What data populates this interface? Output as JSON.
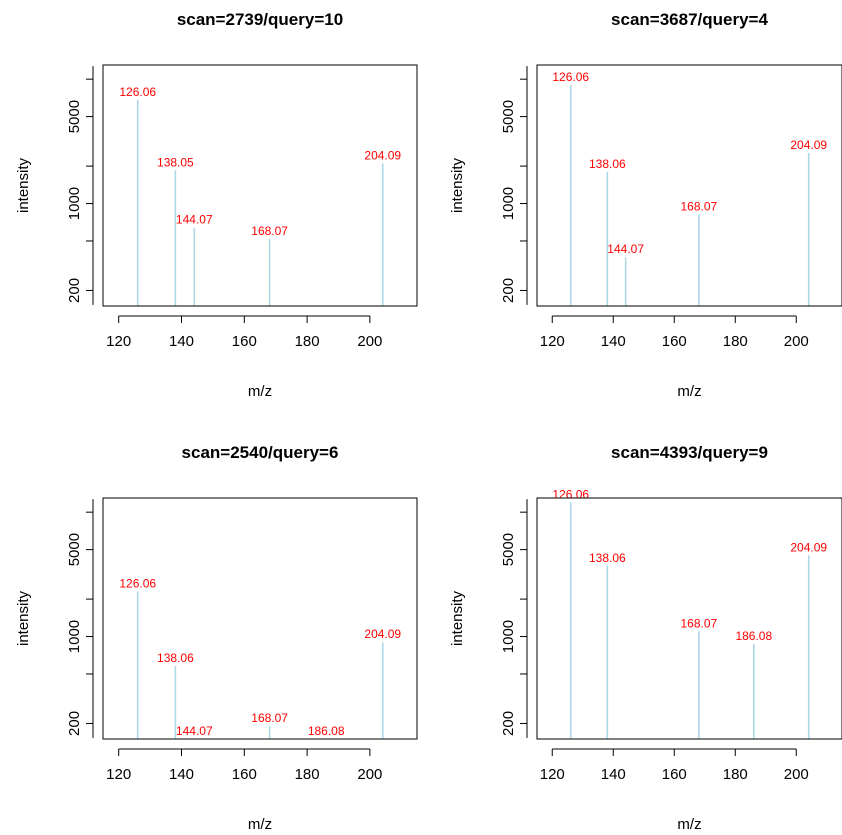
{
  "colors": {
    "peak": "#add8e6",
    "peak_label": "#ff0000",
    "axis": "#000000",
    "background": "#ffffff"
  },
  "chart_data": [
    {
      "type": "bar",
      "title": "scan=2739/query=10",
      "xlabel": "m/z",
      "ylabel": "intensity",
      "y_scale": "log",
      "xlim": [
        115,
        215
      ],
      "ylim": [
        150,
        13000
      ],
      "x_ticks": [
        120,
        140,
        160,
        180,
        200
      ],
      "y_ticks": [
        200,
        1000,
        5000
      ],
      "x": [
        126.06,
        138.05,
        144.07,
        168.07,
        204.09
      ],
      "values": [
        6800,
        1850,
        640,
        520,
        2100
      ],
      "labels": [
        "126.06",
        "138.05",
        "144.07",
        "168.07",
        "204.09"
      ]
    },
    {
      "type": "bar",
      "title": "scan=3687/query=4",
      "xlabel": "m/z",
      "ylabel": "intensity",
      "y_scale": "log",
      "xlim": [
        115,
        215
      ],
      "ylim": [
        150,
        13000
      ],
      "x_ticks": [
        120,
        140,
        160,
        180,
        200
      ],
      "y_ticks": [
        200,
        1000,
        5000
      ],
      "x": [
        126.06,
        138.06,
        144.07,
        168.07,
        204.09
      ],
      "values": [
        9000,
        1800,
        370,
        820,
        2550
      ],
      "labels": [
        "126.06",
        "138.06",
        "144.07",
        "168.07",
        "204.09"
      ]
    },
    {
      "type": "bar",
      "title": "scan=2540/query=6",
      "xlabel": "m/z",
      "ylabel": "intensity",
      "y_scale": "log",
      "xlim": [
        115,
        215
      ],
      "ylim": [
        150,
        13000
      ],
      "x_ticks": [
        120,
        140,
        160,
        180,
        200
      ],
      "y_ticks": [
        200,
        1000,
        5000
      ],
      "x": [
        126.06,
        138.06,
        144.07,
        168.07,
        186.08,
        204.09
      ],
      "values": [
        2300,
        580,
        150,
        190,
        150,
        900
      ],
      "labels": [
        "126.06",
        "138.06",
        "144.07",
        "168.07",
        "186.08",
        "204.09"
      ]
    },
    {
      "type": "bar",
      "title": "scan=4393/query=9",
      "xlabel": "m/z",
      "ylabel": "intensity",
      "y_scale": "log",
      "xlim": [
        115,
        215
      ],
      "ylim": [
        150,
        13000
      ],
      "x_ticks": [
        120,
        140,
        160,
        180,
        200
      ],
      "y_ticks": [
        200,
        1000,
        5000
      ],
      "x": [
        126.06,
        138.06,
        168.07,
        186.08,
        204.09
      ],
      "values": [
        12000,
        3700,
        1100,
        870,
        4500
      ],
      "labels": [
        "126.06",
        "138.06",
        "168.07",
        "186.08",
        "204.09"
      ]
    }
  ]
}
